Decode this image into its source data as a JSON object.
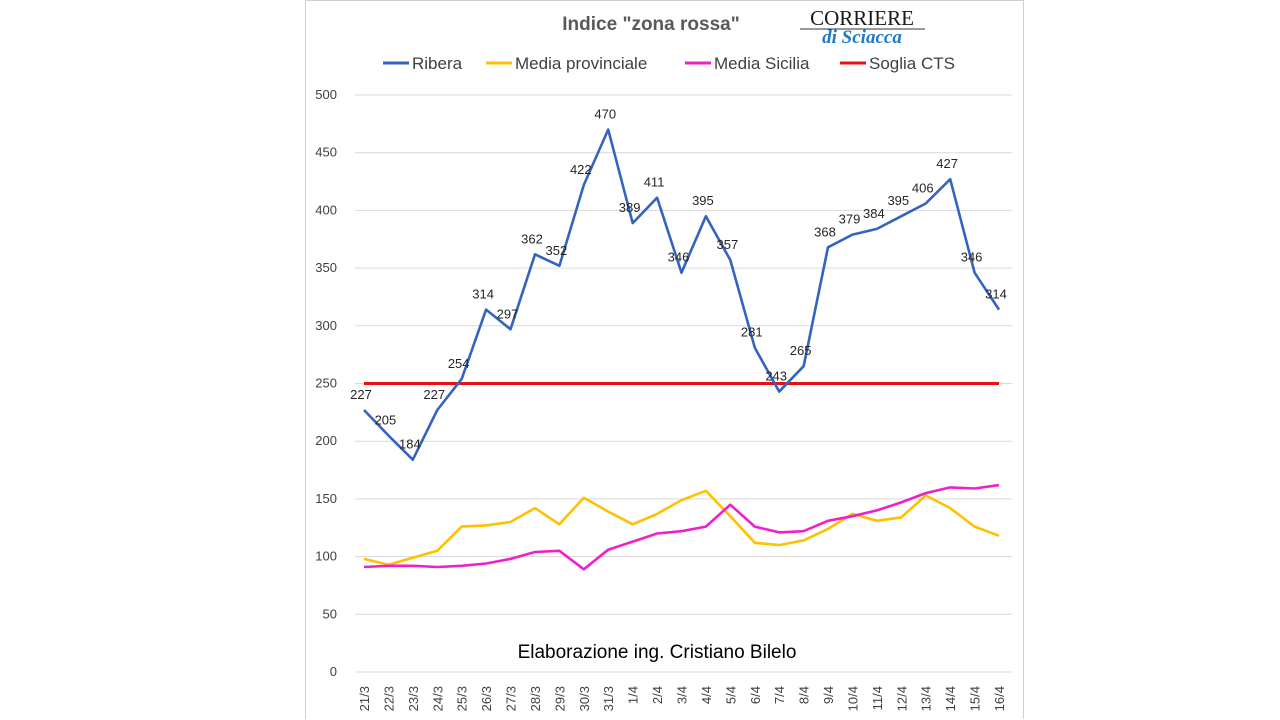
{
  "logo": {
    "line1": "CORRIERE",
    "line2": "di Sciacca"
  },
  "chart_data": {
    "type": "line",
    "title": "Indice \"zona rossa\"",
    "annotation": "Elaborazione ing. Cristiano Bilelo",
    "xlabel": "",
    "ylabel": "",
    "ylim": [
      0,
      500
    ],
    "yticks": [
      0,
      50,
      100,
      150,
      200,
      250,
      300,
      350,
      400,
      450,
      500
    ],
    "grid": true,
    "legend_position": "top",
    "categories": [
      "21/3",
      "22/3",
      "23/3",
      "24/3",
      "25/3",
      "26/3",
      "27/3",
      "28/3",
      "29/3",
      "30/3",
      "31/3",
      "1/4",
      "2/4",
      "3/4",
      "4/4",
      "5/4",
      "6/4",
      "7/4",
      "8/4",
      "9/4",
      "10/4",
      "11/4",
      "12/4",
      "13/4",
      "14/4",
      "15/4",
      "16/4"
    ],
    "series": [
      {
        "name": "Ribera",
        "color": "#3563C0",
        "data_labels": true,
        "values": [
          227,
          205,
          184,
          227,
          254,
          314,
          297,
          362,
          352,
          422,
          470,
          389,
          411,
          346,
          395,
          357,
          281,
          243,
          265,
          368,
          379,
          384,
          395,
          406,
          427,
          346,
          314
        ]
      },
      {
        "name": "Media provinciale",
        "color": "#FFC000",
        "data_labels": false,
        "values": [
          98,
          93,
          99,
          105,
          126,
          127,
          130,
          142,
          128,
          151,
          139,
          128,
          137,
          149,
          157,
          135,
          112,
          110,
          114,
          124,
          137,
          131,
          134,
          153,
          142,
          126,
          118
        ]
      },
      {
        "name": "Media Sicilia",
        "color": "#F020C8",
        "data_labels": false,
        "values": [
          91,
          92,
          92,
          91,
          92,
          94,
          98,
          104,
          105,
          89,
          106,
          113,
          120,
          122,
          126,
          145,
          126,
          121,
          122,
          131,
          135,
          140,
          147,
          155,
          160,
          159,
          162
        ]
      },
      {
        "name": "Soglia CTS",
        "color": "#E81010",
        "data_labels": false,
        "values": [
          250,
          250,
          250,
          250,
          250,
          250,
          250,
          250,
          250,
          250,
          250,
          250,
          250,
          250,
          250,
          250,
          250,
          250,
          250,
          250,
          250,
          250,
          250,
          250,
          250,
          250,
          250
        ]
      }
    ]
  }
}
